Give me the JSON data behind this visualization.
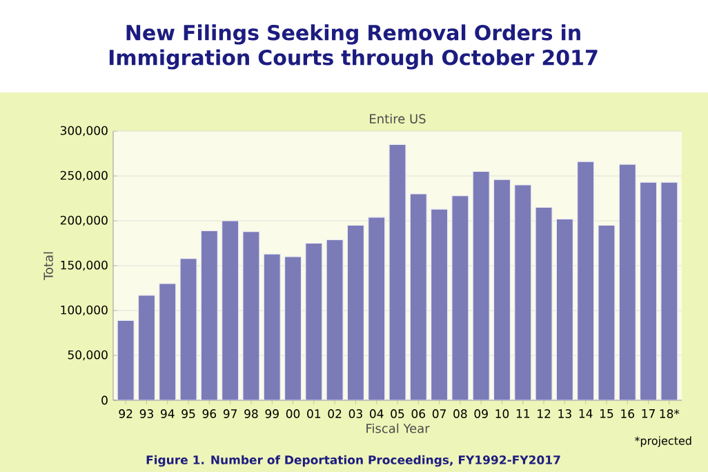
{
  "chart_data": {
    "type": "bar",
    "title": "New Filings Seeking Removal Orders in Immigration Courts through October 2017",
    "subtitle": "Entire US",
    "xlabel": "Fiscal Year",
    "ylabel": "Total",
    "categories": [
      "92",
      "93",
      "94",
      "95",
      "96",
      "97",
      "98",
      "99",
      "00",
      "01",
      "02",
      "03",
      "04",
      "05",
      "06",
      "07",
      "08",
      "09",
      "10",
      "11",
      "12",
      "13",
      "14",
      "15",
      "16",
      "17",
      "18*"
    ],
    "values": [
      89000,
      117000,
      130000,
      158000,
      189000,
      200000,
      188000,
      163000,
      160000,
      175000,
      179000,
      195000,
      204000,
      285000,
      230000,
      213000,
      228000,
      255000,
      246000,
      240000,
      215000,
      202000,
      266000,
      195000,
      263000,
      243000,
      243000
    ],
    "color": "#7b7bb8",
    "ylim": [
      0,
      300000
    ],
    "yticks": [
      {
        "value": 0,
        "label": "0"
      },
      {
        "value": 50000,
        "label": "50,000"
      },
      {
        "value": 100000,
        "label": "100,000"
      },
      {
        "value": 150000,
        "label": "150,000"
      },
      {
        "value": 200000,
        "label": "200,000"
      },
      {
        "value": 250000,
        "label": "250,000"
      },
      {
        "value": 300000,
        "label": "300,000"
      }
    ],
    "grid": "y",
    "annotations": [
      "*projected",
      "Figure 1. Number of Deportation Proceedings, FY1992-FY2017"
    ]
  }
}
